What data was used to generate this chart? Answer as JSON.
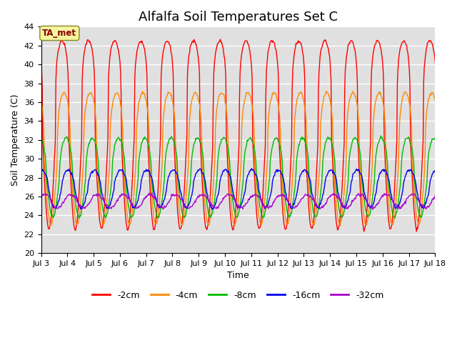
{
  "title": "Alfalfa Soil Temperatures Set C",
  "xlabel": "Time",
  "ylabel": "Soil Temperature (C)",
  "ylim": [
    20,
    44
  ],
  "yticks": [
    20,
    22,
    24,
    26,
    28,
    30,
    32,
    34,
    36,
    38,
    40,
    42,
    44
  ],
  "x_start_day": 3,
  "x_end_day": 18,
  "x_tick_days": [
    3,
    4,
    5,
    6,
    7,
    8,
    9,
    10,
    11,
    12,
    13,
    14,
    15,
    16,
    17,
    18
  ],
  "series_colors": [
    "#ff0000",
    "#ff8800",
    "#00bb00",
    "#0000ee",
    "#aa00cc"
  ],
  "series_labels": [
    "-2cm",
    "-4cm",
    "-8cm",
    "-16cm",
    "-32cm"
  ],
  "annotation_text": "TA_met",
  "background_color": "#e0e0e0",
  "title_fontsize": 13,
  "axis_label_fontsize": 9,
  "tick_fontsize": 8,
  "legend_fontsize": 9,
  "points_per_day": 48,
  "series_params": [
    {
      "amp": 10.0,
      "phase_shift": 0.55,
      "mean": 32.5,
      "mean_decay": 0.0,
      "amp_decay": 0.0,
      "sharpness": 3.5
    },
    {
      "amp": 7.0,
      "phase_shift": 0.62,
      "mean": 30.0,
      "mean_decay": 0.0,
      "amp_decay": 0.0,
      "sharpness": 2.0
    },
    {
      "amp": 4.2,
      "phase_shift": 0.7,
      "mean": 28.0,
      "mean_decay": 0.0,
      "amp_decay": 0.0,
      "sharpness": 1.2
    },
    {
      "amp": 2.0,
      "phase_shift": 0.78,
      "mean": 26.8,
      "mean_decay": 0.0,
      "amp_decay": 0.0,
      "sharpness": 0.8
    },
    {
      "amp": 0.7,
      "phase_shift": 0.88,
      "mean": 25.5,
      "mean_decay": 0.0,
      "amp_decay": 0.0,
      "sharpness": 0.3
    }
  ]
}
